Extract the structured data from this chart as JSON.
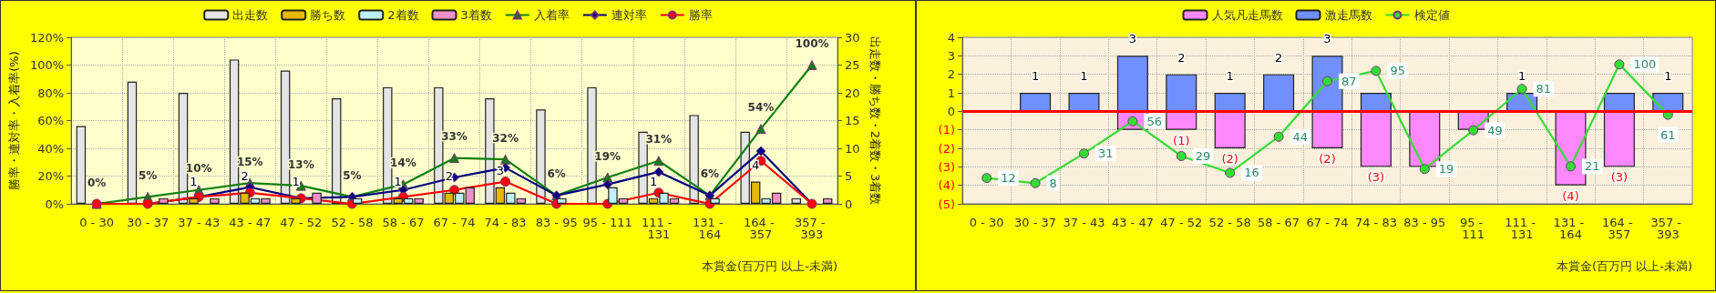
{
  "chart_data": [
    {
      "type": "bar",
      "xlabel": "本賞金(百万円 以上-未満)",
      "ylabel": "勝率・連対率・入着率(%)",
      "y2label": "出走数・勝ち数・2着数・3着数",
      "categories": [
        "0 - 30",
        "30 - 37",
        "37 - 43",
        "43 - 47",
        "47 - 52",
        "52 - 58",
        "58 - 67",
        "67 - 74",
        "74 - 83",
        "83 - 95",
        "95 - 111",
        "111 - 131",
        "131 - 164",
        "164 - 357",
        "357 - 393"
      ],
      "ylim": [
        0,
        120
      ],
      "yticks": [
        {
          "value": 0,
          "label": "0%"
        },
        {
          "value": 20,
          "label": "20%"
        },
        {
          "value": 40,
          "label": "40%"
        },
        {
          "value": 60,
          "label": "60%"
        },
        {
          "value": 80,
          "label": "80%"
        },
        {
          "value": 100,
          "label": "100%"
        },
        {
          "value": 120,
          "label": "120%"
        }
      ],
      "y2lim": [
        0,
        30
      ],
      "y2ticks": [
        0,
        5,
        10,
        15,
        20,
        25,
        30
      ],
      "grid": true,
      "legend": "top",
      "series": [
        {
          "name": "出走数",
          "axis": "y2",
          "color": "#e4e4e4",
          "values": [
            14,
            22,
            20,
            26,
            24,
            19,
            21,
            21,
            19,
            17,
            21,
            13,
            16,
            13,
            1
          ]
        },
        {
          "name": "勝ち数",
          "axis": "y2",
          "color": "#e6b800",
          "values": [
            0,
            0,
            1,
            2,
            1,
            0,
            1,
            2,
            3,
            0,
            0,
            1,
            0,
            4,
            0
          ],
          "value_labels": [
            null,
            null,
            "1",
            "2",
            "1",
            null,
            "1",
            "2",
            "3",
            null,
            null,
            "1",
            null,
            "4",
            null
          ]
        },
        {
          "name": "2着数",
          "axis": "y2",
          "color": "#bff0f8",
          "values": [
            0,
            0,
            0,
            1,
            0,
            1,
            1,
            2,
            2,
            1,
            3,
            2,
            1,
            1,
            0
          ]
        },
        {
          "name": "3着数",
          "axis": "y2",
          "color": "#f090c8",
          "values": [
            0,
            1,
            1,
            1,
            2,
            0,
            1,
            3,
            1,
            0,
            1,
            1,
            0,
            2,
            1
          ]
        },
        {
          "name": "入着率",
          "type": "line",
          "color": "#108010",
          "marker": "triangle",
          "values": [
            0,
            5,
            10,
            15,
            13,
            5,
            14,
            33,
            32,
            6,
            19,
            31,
            6,
            54,
            100
          ],
          "value_labels": [
            "0%",
            "5%",
            "10%",
            "15%",
            "13%",
            "5%",
            "14%",
            "33%",
            "32%",
            "6%",
            "19%",
            "31%",
            "6%",
            "54%",
            "100%"
          ]
        },
        {
          "name": "連対率",
          "type": "line",
          "color": "#000080",
          "marker": "diamond",
          "values": [
            0,
            0,
            5,
            12,
            4,
            5,
            10,
            19,
            26,
            6,
            14,
            23,
            6,
            38,
            0
          ]
        },
        {
          "name": "勝率",
          "type": "line",
          "color": "#ff0000",
          "marker": "circle",
          "values": [
            0,
            0,
            5,
            8,
            4,
            0,
            5,
            10,
            16,
            0,
            0,
            8,
            0,
            31,
            0
          ]
        }
      ]
    },
    {
      "type": "bar",
      "xlabel": "本賞金(百万円 以上-未満)",
      "categories": [
        "0 - 30",
        "30 - 37",
        "37 - 43",
        "43 - 47",
        "47 - 52",
        "52 - 58",
        "58 - 67",
        "67 - 74",
        "74 - 83",
        "83 - 95",
        "95 - 111",
        "111 - 131",
        "131 - 164",
        "164 - 357",
        "357 - 393"
      ],
      "ylim": [
        -5,
        4
      ],
      "yticks": [
        4,
        3,
        2,
        1,
        0,
        {
          "value": -1,
          "label": "(1)"
        },
        {
          "value": -2,
          "label": "(2)"
        },
        {
          "value": -3,
          "label": "(3)"
        },
        {
          "value": -4,
          "label": "(4)"
        },
        {
          "value": -5,
          "label": "(5)"
        }
      ],
      "y2lim": [
        -8,
        121
      ],
      "stacked": true,
      "grid": true,
      "legend": "top",
      "ref_lines": [
        {
          "axis": "y",
          "value": 0,
          "color": "#ff0000"
        }
      ],
      "series": [
        {
          "name": "人気凡走馬数",
          "color": "#ff88ff",
          "values": [
            0,
            0,
            0,
            -1,
            -1,
            -2,
            0,
            -2,
            -3,
            -3,
            -1,
            0,
            -4,
            -3,
            0
          ],
          "value_labels": [
            null,
            null,
            null,
            null,
            "(1)",
            "(2)",
            null,
            "(2)",
            "(3)",
            null,
            null,
            null,
            "(4)",
            "(3)",
            null
          ]
        },
        {
          "name": "激走馬数",
          "color": "#7090ff",
          "values": [
            0,
            1,
            1,
            3,
            2,
            1,
            2,
            3,
            1,
            0,
            0,
            1,
            0,
            1,
            1
          ],
          "value_labels": [
            null,
            "1",
            "1",
            "3",
            "2",
            "1",
            "2",
            "3",
            null,
            null,
            null,
            "1",
            null,
            null,
            "1"
          ]
        },
        {
          "name": "検定値",
          "type": "line",
          "axis": "y2",
          "color": "#33dd33",
          "marker": "circle",
          "values": [
            12,
            8,
            31,
            56,
            29,
            16,
            44,
            87,
            95,
            19,
            49,
            81,
            21,
            100,
            61
          ],
          "value_labels": [
            "12",
            "8",
            "31",
            "56",
            "29",
            "16",
            "44",
            "87",
            "95",
            "19",
            "49",
            "81",
            "21",
            "100",
            "61"
          ]
        }
      ]
    }
  ]
}
